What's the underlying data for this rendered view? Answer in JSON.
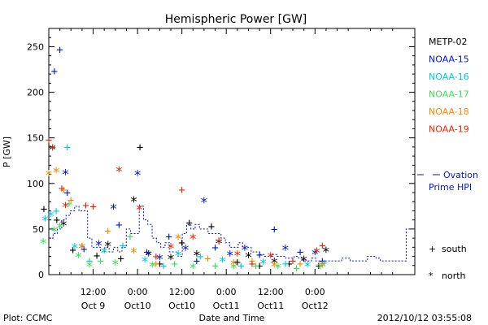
{
  "chart_data": {
    "type": "scatter",
    "title": "Hemispheric Power [GW]",
    "ylabel": "P [GW]",
    "xlabel": "Date and Time",
    "ylim": [
      0,
      270
    ],
    "xlim": [
      "2012-10-08 00:00",
      "2012-10-12 03:00"
    ],
    "yticks": [
      0,
      50,
      100,
      150,
      200,
      250
    ],
    "xticks": [
      {
        "time": "2012-10-08 12:00",
        "top": "12:00",
        "bottom": "Oct 9"
      },
      {
        "time": "2012-10-09 00:00",
        "top": "0:00",
        "bottom": "Oct10"
      },
      {
        "time": "2012-10-09 12:00",
        "top": "12:00",
        "bottom": "Oct10"
      },
      {
        "time": "2012-10-10 00:00",
        "top": "0:00",
        "bottom": "Oct11"
      },
      {
        "time": "2012-10-10 12:00",
        "top": "12:00",
        "bottom": "Oct11"
      },
      {
        "time": "2012-10-11 00:00",
        "top": "0:00",
        "bottom": "Oct12"
      }
    ],
    "markers": {
      "south": "+",
      "north": "*"
    },
    "series": [
      {
        "name": "METP-02",
        "color": "#000000",
        "points": [
          [
            "2012-10-07 22:40",
            72,
            "+"
          ],
          [
            "2012-10-08 01:00",
            138,
            "*"
          ],
          [
            "2012-10-08 02:10",
            60,
            "+"
          ],
          [
            "2012-10-08 04:00",
            55,
            "*"
          ],
          [
            "2012-10-08 06:30",
            27,
            "+"
          ],
          [
            "2012-10-08 09:00",
            30,
            "*"
          ],
          [
            "2012-10-08 13:00",
            21,
            "+"
          ],
          [
            "2012-10-08 16:00",
            32,
            "*"
          ],
          [
            "2012-10-08 19:30",
            18,
            "+"
          ],
          [
            "2012-10-08 23:00",
            81,
            "*"
          ],
          [
            "2012-10-09 00:40",
            140,
            "+"
          ],
          [
            "2012-10-09 03:00",
            22,
            "*"
          ],
          [
            "2012-10-09 06:00",
            12,
            "+"
          ],
          [
            "2012-10-09 09:00",
            18,
            "*"
          ],
          [
            "2012-10-09 12:00",
            35,
            "+"
          ],
          [
            "2012-10-09 14:00",
            57,
            "+"
          ],
          [
            "2012-10-09 16:00",
            22,
            "*"
          ],
          [
            "2012-10-09 20:00",
            53,
            "+"
          ],
          [
            "2012-10-09 22:00",
            35,
            "*"
          ],
          [
            "2012-10-10 03:00",
            14,
            "+"
          ],
          [
            "2012-10-10 06:00",
            20,
            "*"
          ],
          [
            "2012-10-10 09:00",
            10,
            "+"
          ],
          [
            "2012-10-10 13:00",
            14,
            "*"
          ],
          [
            "2012-10-10 17:00",
            12,
            "+"
          ],
          [
            "2012-10-10 21:00",
            16,
            "*"
          ],
          [
            "2012-10-11 01:00",
            10,
            "+"
          ],
          [
            "2012-10-11 03:00",
            26,
            "*"
          ]
        ]
      },
      {
        "name": "NOAA-15",
        "color": "#0018c8",
        "points": [
          [
            "2012-10-08 01:30",
            223,
            "+"
          ],
          [
            "2012-10-08 03:00",
            247,
            "+"
          ],
          [
            "2012-10-08 04:30",
            111,
            "*"
          ],
          [
            "2012-10-08 05:00",
            90,
            "+"
          ],
          [
            "2012-10-08 09:30",
            28,
            "+"
          ],
          [
            "2012-10-08 13:30",
            33,
            "*"
          ],
          [
            "2012-10-08 17:30",
            73,
            "*"
          ],
          [
            "2012-10-08 19:00",
            55,
            "+"
          ],
          [
            "2012-10-09 00:00",
            110,
            "*"
          ],
          [
            "2012-10-09 02:30",
            25,
            "+"
          ],
          [
            "2012-10-09 06:00",
            18,
            "*"
          ],
          [
            "2012-10-09 08:30",
            42,
            "+"
          ],
          [
            "2012-10-09 13:00",
            28,
            "*"
          ],
          [
            "2012-10-09 16:00",
            15,
            "+"
          ],
          [
            "2012-10-09 18:00",
            80,
            "*"
          ],
          [
            "2012-10-09 21:00",
            30,
            "+"
          ],
          [
            "2012-10-10 01:00",
            22,
            "*"
          ],
          [
            "2012-10-10 05:00",
            28,
            "*"
          ],
          [
            "2012-10-10 09:00",
            22,
            "+"
          ],
          [
            "2012-10-10 13:00",
            50,
            "+"
          ],
          [
            "2012-10-10 16:00",
            28,
            "*"
          ],
          [
            "2012-10-10 20:00",
            25,
            "+"
          ],
          [
            "2012-10-11 00:00",
            23,
            "*"
          ],
          [
            "2012-10-11 02:00",
            15,
            "+"
          ]
        ]
      },
      {
        "name": "NOAA-16",
        "color": "#00c8e6",
        "points": [
          [
            "2012-10-07 23:00",
            60,
            "*"
          ],
          [
            "2012-10-08 00:30",
            65,
            "*"
          ],
          [
            "2012-10-08 02:00",
            70,
            "+"
          ],
          [
            "2012-10-08 05:00",
            140,
            "+"
          ],
          [
            "2012-10-08 07:00",
            30,
            "*"
          ],
          [
            "2012-10-08 11:00",
            15,
            "+"
          ],
          [
            "2012-10-08 15:00",
            25,
            "*"
          ],
          [
            "2012-10-08 20:00",
            32,
            "+"
          ],
          [
            "2012-10-09 02:00",
            15,
            "*"
          ],
          [
            "2012-10-09 07:00",
            10,
            "+"
          ],
          [
            "2012-10-09 11:00",
            22,
            "*"
          ],
          [
            "2012-10-09 17:00",
            20,
            "+"
          ],
          [
            "2012-10-09 23:00",
            15,
            "*"
          ],
          [
            "2012-10-10 04:00",
            10,
            "+"
          ],
          [
            "2012-10-10 10:00",
            13,
            "*"
          ],
          [
            "2012-10-10 16:00",
            12,
            "+"
          ],
          [
            "2012-10-10 22:00",
            10,
            "*"
          ],
          [
            "2012-10-11 02:30",
            13,
            "+"
          ]
        ]
      },
      {
        "name": "NOAA-17",
        "color": "#3cdc5a",
        "points": [
          [
            "2012-10-07 22:30",
            35,
            "*"
          ],
          [
            "2012-10-08 01:30",
            48,
            "*"
          ],
          [
            "2012-10-08 03:00",
            52,
            "*"
          ],
          [
            "2012-10-08 05:30",
            78,
            "+"
          ],
          [
            "2012-10-08 08:00",
            20,
            "*"
          ],
          [
            "2012-10-08 11:00",
            10,
            "*"
          ],
          [
            "2012-10-08 14:00",
            15,
            "+"
          ],
          [
            "2012-10-08 18:00",
            12,
            "*"
          ],
          [
            "2012-10-08 22:00",
            42,
            "+"
          ],
          [
            "2012-10-09 04:00",
            10,
            "*"
          ],
          [
            "2012-10-09 10:00",
            12,
            "+"
          ],
          [
            "2012-10-09 15:00",
            8,
            "*"
          ],
          [
            "2012-10-09 21:00",
            10,
            "+"
          ],
          [
            "2012-10-10 02:00",
            8,
            "*"
          ],
          [
            "2012-10-10 08:00",
            10,
            "+"
          ],
          [
            "2012-10-10 14:00",
            8,
            "*"
          ],
          [
            "2012-10-10 19:00",
            7,
            "+"
          ],
          [
            "2012-10-11 01:30",
            8,
            "*"
          ]
        ]
      },
      {
        "name": "NOAA-18",
        "color": "#f08c00",
        "points": [
          [
            "2012-10-08 00:00",
            110,
            "*"
          ],
          [
            "2012-10-08 02:00",
            113,
            "*"
          ],
          [
            "2012-10-08 04:00",
            93,
            "+"
          ],
          [
            "2012-10-08 06:00",
            82,
            "+"
          ],
          [
            "2012-10-08 09:00",
            30,
            "*"
          ],
          [
            "2012-10-08 16:00",
            48,
            "+"
          ],
          [
            "2012-10-08 23:00",
            25,
            "*"
          ],
          [
            "2012-10-09 05:00",
            12,
            "+"
          ],
          [
            "2012-10-09 11:00",
            40,
            "*"
          ],
          [
            "2012-10-09 19:00",
            18,
            "+"
          ],
          [
            "2012-10-10 02:00",
            12,
            "*"
          ],
          [
            "2012-10-10 07:00",
            15,
            "+"
          ],
          [
            "2012-10-10 13:00",
            10,
            "*"
          ],
          [
            "2012-10-10 20:00",
            12,
            "+"
          ],
          [
            "2012-10-11 02:00",
            10,
            "*"
          ]
        ]
      },
      {
        "name": "NOAA-19",
        "color": "#e62800",
        "points": [
          [
            "2012-10-08 00:00",
            148,
            "+"
          ],
          [
            "2012-10-08 01:00",
            140,
            "+"
          ],
          [
            "2012-10-08 03:30",
            95,
            "+"
          ],
          [
            "2012-10-08 04:30",
            75,
            "*"
          ],
          [
            "2012-10-08 10:00",
            76,
            "+"
          ],
          [
            "2012-10-08 12:00",
            75,
            "+"
          ],
          [
            "2012-10-08 19:00",
            114,
            "*"
          ],
          [
            "2012-10-09 00:30",
            72,
            "*"
          ],
          [
            "2012-10-09 05:00",
            20,
            "+"
          ],
          [
            "2012-10-09 09:00",
            30,
            "*"
          ],
          [
            "2012-10-09 12:00",
            93,
            "+"
          ],
          [
            "2012-10-09 15:00",
            40,
            "*"
          ],
          [
            "2012-10-09 22:00",
            38,
            "+"
          ],
          [
            "2012-10-10 03:00",
            22,
            "*"
          ],
          [
            "2012-10-10 07:00",
            12,
            "+"
          ],
          [
            "2012-10-10 12:00",
            20,
            "*"
          ],
          [
            "2012-10-10 18:00",
            15,
            "+"
          ],
          [
            "2012-10-11 00:30",
            25,
            "*"
          ],
          [
            "2012-10-11 02:00",
            32,
            "+"
          ]
        ]
      }
    ],
    "ovation": {
      "name": "Ovation Prime HPI",
      "color": "#0018c8",
      "values": [
        40,
        45,
        50,
        60,
        65,
        70,
        75,
        70,
        70,
        40,
        30,
        30,
        25,
        30,
        25,
        30,
        25,
        30,
        50,
        45,
        45,
        75,
        60,
        55,
        40,
        35,
        30,
        35,
        25,
        25,
        20,
        45,
        55,
        50,
        55,
        50,
        50,
        45,
        45,
        45,
        40,
        35,
        30,
        30,
        35,
        30,
        30,
        25,
        25,
        22,
        20,
        20,
        22,
        20,
        20,
        18,
        18,
        20,
        18,
        15,
        15,
        18,
        15,
        15,
        15,
        15,
        15,
        15,
        18,
        18,
        15,
        15,
        15,
        15,
        20,
        20,
        18,
        15,
        15,
        15,
        15,
        15,
        15,
        50,
        50
      ]
    }
  },
  "legend": {
    "ovation_line1": "Ovation",
    "ovation_line2": "Prime HPI",
    "south_label": "south",
    "north_label": "north"
  },
  "footer": {
    "plot_credit": "Plot: CCMC",
    "timestamp": "2012/10/12 03:55:08"
  }
}
